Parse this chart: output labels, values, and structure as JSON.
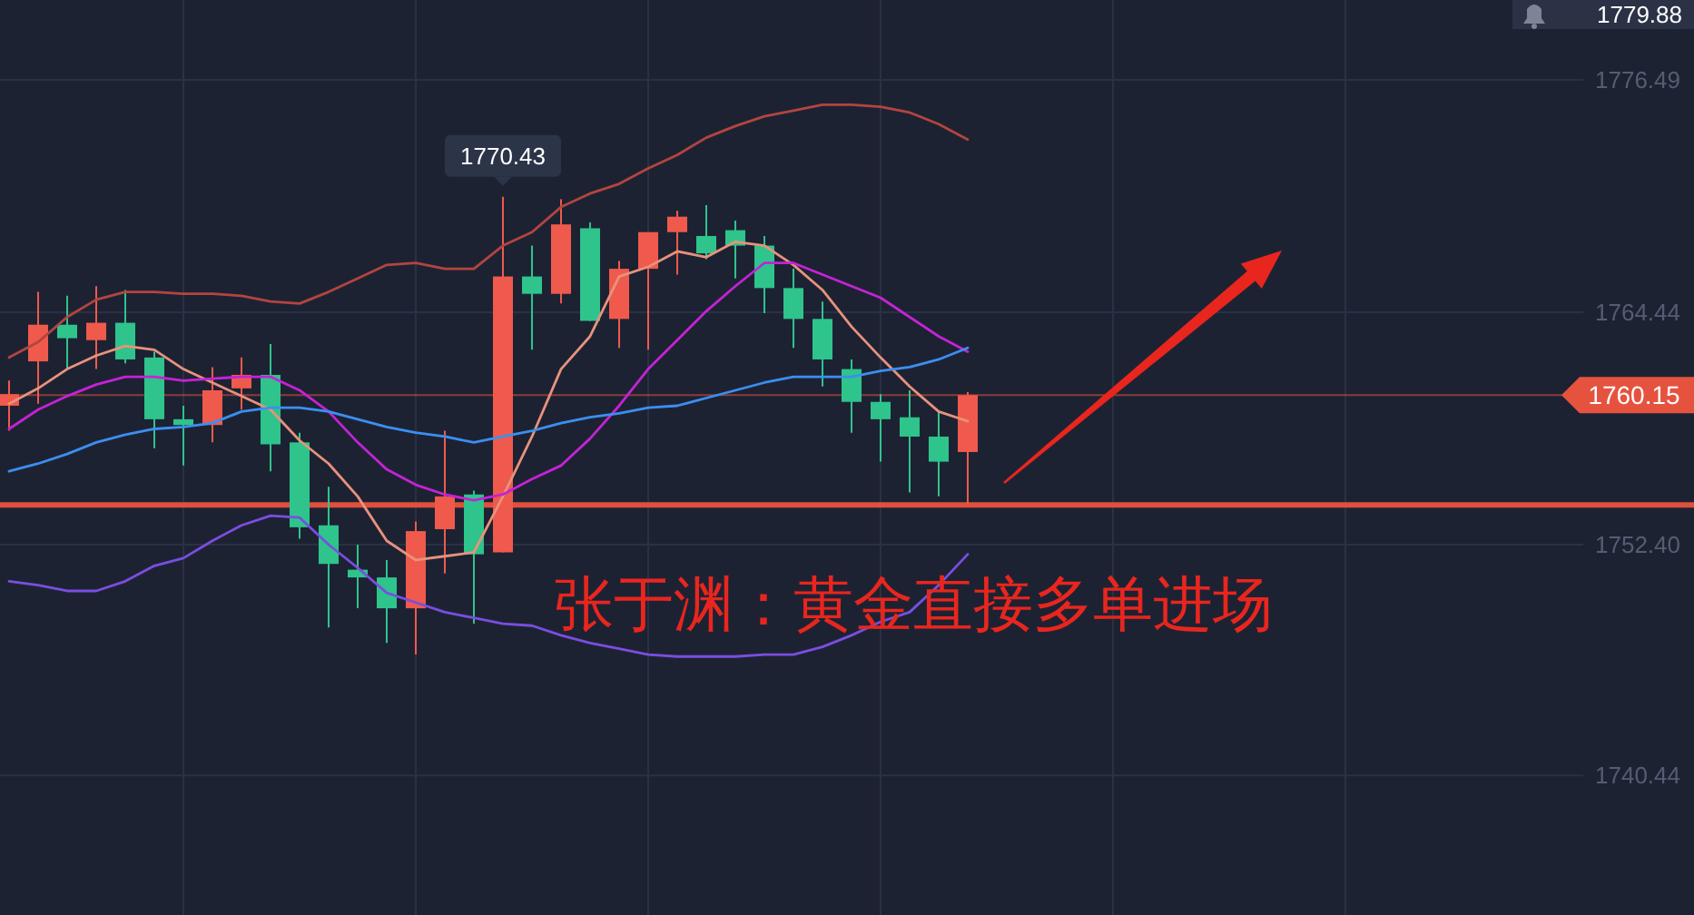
{
  "chart_data": {
    "type": "candlestick",
    "categories": [
      null,
      null,
      null,
      null,
      null,
      null,
      null,
      null,
      null,
      null,
      null,
      null,
      null,
      null,
      null,
      null,
      null,
      null,
      null,
      null,
      null,
      null,
      null,
      null,
      null,
      null,
      null,
      null,
      null,
      null,
      null,
      null,
      null,
      null
    ],
    "ohlc": [
      [
        1759.6,
        1760.9,
        1758.3,
        1760.2
      ],
      [
        1761.9,
        1765.5,
        1759.7,
        1763.8
      ],
      [
        1763.8,
        1765.3,
        1761.5,
        1763.1
      ],
      [
        1763.0,
        1765.8,
        1761.5,
        1763.9
      ],
      [
        1763.9,
        1765.6,
        1761.8,
        1762.0
      ],
      [
        1762.1,
        1762.4,
        1757.4,
        1758.9
      ],
      [
        1758.9,
        1759.6,
        1756.5,
        1758.6
      ],
      [
        1758.6,
        1761.6,
        1757.7,
        1760.4
      ],
      [
        1760.5,
        1762.1,
        1759.4,
        1761.2
      ],
      [
        1761.2,
        1762.8,
        1756.2,
        1757.6
      ],
      [
        1757.7,
        1758.2,
        1752.7,
        1753.3
      ],
      [
        1753.4,
        1755.4,
        1748.1,
        1751.4
      ],
      [
        1751.1,
        1752.4,
        1749.1,
        1750.7
      ],
      [
        1750.7,
        1751.6,
        1747.3,
        1749.1
      ],
      [
        1749.1,
        1753.6,
        1746.7,
        1753.1
      ],
      [
        1753.2,
        1758.3,
        1750.9,
        1754.9
      ],
      [
        1755.0,
        1755.2,
        1748.3,
        1751.9
      ],
      [
        1752.0,
        1770.43,
        1752.0,
        1766.3
      ],
      [
        1766.3,
        1767.9,
        1762.5,
        1765.4
      ],
      [
        1765.4,
        1770.3,
        1764.9,
        1769.0
      ],
      [
        1768.8,
        1769.1,
        1764.0,
        1764.0
      ],
      [
        1764.1,
        1767.1,
        1762.6,
        1766.7
      ],
      [
        1766.7,
        1768.6,
        1762.5,
        1768.6
      ],
      [
        1768.6,
        1769.7,
        1766.4,
        1769.4
      ],
      [
        1768.4,
        1770.0,
        1767.2,
        1767.5
      ],
      [
        1768.7,
        1769.2,
        1766.2,
        1767.9
      ],
      [
        1767.9,
        1768.4,
        1764.4,
        1765.7
      ],
      [
        1765.7,
        1766.7,
        1762.6,
        1764.1
      ],
      [
        1764.1,
        1765.0,
        1760.6,
        1762.0
      ],
      [
        1761.5,
        1762.0,
        1758.2,
        1759.8
      ],
      [
        1759.8,
        1760.2,
        1756.7,
        1758.9
      ],
      [
        1759.0,
        1760.4,
        1755.1,
        1758.0
      ],
      [
        1758.0,
        1759.3,
        1754.9,
        1756.7
      ],
      [
        1757.2,
        1760.3,
        1754.5,
        1760.15
      ]
    ],
    "colors": [
      "#ef5a4c",
      "#ef5a4c",
      "#2ec48c",
      "#ef5a4c",
      "#2ec48c",
      "#2ec48c",
      "#2ec48c",
      "#ef5a4c",
      "#ef5a4c",
      "#2ec48c",
      "#2ec48c",
      "#2ec48c",
      "#2ec48c",
      "#2ec48c",
      "#ef5a4c",
      "#ef5a4c",
      "#2ec48c",
      "#ef5a4c",
      "#2ec48c",
      "#ef5a4c",
      "#2ec48c",
      "#ef5a4c",
      "#ef5a4c",
      "#ef5a4c",
      "#2ec48c",
      "#2ec48c",
      "#2ec48c",
      "#2ec48c",
      "#2ec48c",
      "#2ec48c",
      "#2ec48c",
      "#2ec48c",
      "#2ec48c",
      "#ef5a4c"
    ],
    "series": [
      {
        "type": "line",
        "color": "#b2453f",
        "values": [
          1762.1,
          1762.9,
          1764.2,
          1765.1,
          1765.5,
          1765.5,
          1765.4,
          1765.4,
          1765.3,
          1765.0,
          1764.9,
          1765.5,
          1766.2,
          1766.9,
          1767.0,
          1766.7,
          1766.7,
          1767.9,
          1768.6,
          1769.9,
          1770.6,
          1771.1,
          1771.9,
          1772.6,
          1773.5,
          1774.1,
          1774.6,
          1774.9,
          1775.2,
          1775.2,
          1775.1,
          1774.8,
          1774.2,
          1773.4
        ]
      },
      {
        "type": "line",
        "color": "#e8927c",
        "values": [
          1759.7,
          1760.5,
          1761.5,
          1762.2,
          1762.7,
          1762.5,
          1761.5,
          1760.8,
          1760.1,
          1759.4,
          1757.8,
          1756.6,
          1754.9,
          1752.6,
          1751.6,
          1751.8,
          1752.0,
          1754.9,
          1758.0,
          1761.5,
          1763.2,
          1766.3,
          1766.8,
          1767.6,
          1767.3,
          1768.1,
          1767.9,
          1766.9,
          1765.6,
          1763.7,
          1762.1,
          1760.6,
          1759.3,
          1758.8
        ]
      },
      {
        "type": "line",
        "color": "#c423d4",
        "values": [
          1758.4,
          1759.4,
          1760.1,
          1760.7,
          1761.1,
          1761.1,
          1760.9,
          1761.0,
          1761.1,
          1761.1,
          1760.4,
          1759.3,
          1757.7,
          1756.3,
          1755.5,
          1755.0,
          1754.7,
          1755.0,
          1755.8,
          1756.5,
          1757.9,
          1759.6,
          1761.5,
          1763.0,
          1764.5,
          1765.8,
          1767.0,
          1767.0,
          1766.4,
          1765.8,
          1765.2,
          1764.2,
          1763.2,
          1762.4
        ]
      },
      {
        "type": "line",
        "color": "#3b8ff0",
        "values": [
          1756.2,
          1756.6,
          1757.1,
          1757.7,
          1758.1,
          1758.4,
          1758.5,
          1758.7,
          1759.3,
          1759.5,
          1759.5,
          1759.3,
          1758.9,
          1758.5,
          1758.2,
          1758.0,
          1757.7,
          1758.0,
          1758.3,
          1758.7,
          1759.0,
          1759.2,
          1759.5,
          1759.6,
          1760.0,
          1760.4,
          1760.8,
          1761.1,
          1761.1,
          1761.1,
          1761.4,
          1761.6,
          1762.0,
          1762.6
        ]
      },
      {
        "type": "line",
        "color": "#7a4ee0",
        "values": [
          1750.5,
          1750.3,
          1750.0,
          1750.0,
          1750.5,
          1751.3,
          1751.7,
          1752.6,
          1753.4,
          1753.9,
          1753.8,
          1752.4,
          1751.2,
          1749.9,
          1749.4,
          1748.9,
          1748.6,
          1748.3,
          1748.2,
          1747.7,
          1747.3,
          1747.0,
          1746.7,
          1746.6,
          1746.6,
          1746.6,
          1746.7,
          1746.7,
          1747.1,
          1747.7,
          1748.4,
          1748.9,
          1750.3,
          1751.9
        ]
      }
    ],
    "ylim": [
      1733.2,
      1779.88
    ],
    "yticks": [
      1740.44,
      {
        "value": 1752.4,
        "label": "1752.40"
      },
      1764.44,
      1776.49,
      1779.88
    ],
    "tick_labels": "y",
    "grid": true,
    "ref_lines": [
      {
        "axis": "y",
        "value": 1760.15,
        "label": "1760.15",
        "color": "#e5533f"
      },
      {
        "axis": "y",
        "value": 1754.46,
        "color": "#e0503c"
      }
    ],
    "annotations": [
      {
        "text": "1770.43",
        "y": 1770.43
      },
      "张于渊：黄金直接多单进场"
    ]
  }
}
